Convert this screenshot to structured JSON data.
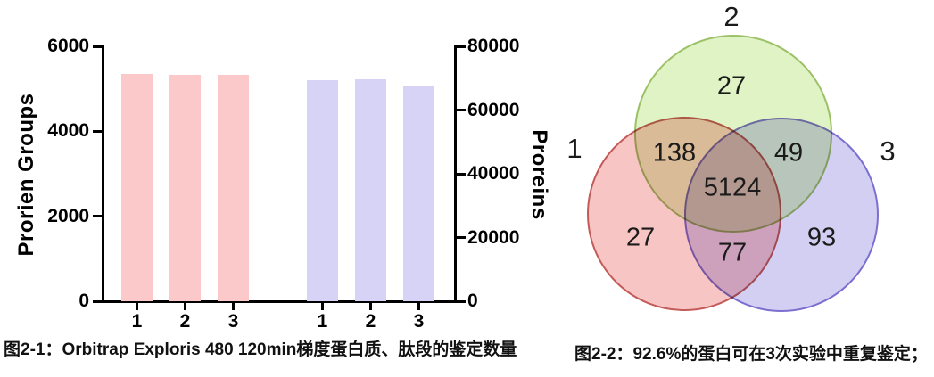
{
  "captions": {
    "fig1": "图2-1：Orbitrap Exploris 480  120min梯度蛋白质、肽段的鉴定数量",
    "fig2": "图2-2：92.6%的蛋白可在3次实验中重复鉴定；"
  },
  "chart_data": [
    {
      "type": "bar",
      "title": "",
      "categories": [
        "1",
        "2",
        "3"
      ],
      "series": [
        {
          "name": "Prorien Groups",
          "axis": "left",
          "values": [
            5360,
            5325,
            5335
          ],
          "color": "#fbc9c9"
        },
        {
          "name": "Proreins",
          "axis": "right",
          "values": [
            69400,
            69650,
            67700
          ],
          "color": "#d7d3f7"
        }
      ],
      "left_axis": {
        "label": "Prorien Groups",
        "min": 0,
        "max": 6000,
        "ticks": [
          "0",
          "2000",
          "4000",
          "6000"
        ]
      },
      "right_axis": {
        "label": "Proreins",
        "min": 0,
        "max": 80000,
        "ticks": [
          "0",
          "20000",
          "40000",
          "60000",
          "80000"
        ]
      },
      "grid": "off",
      "legend": "none"
    },
    {
      "type": "venn",
      "sets": [
        {
          "label": "1",
          "fill": "#f8c5c5",
          "stroke": "#c35b58"
        },
        {
          "label": "2",
          "fill": "#dff3c4",
          "stroke": "#9cc167"
        },
        {
          "label": "3",
          "fill": "#d3cff3",
          "stroke": "#7b6fd0"
        }
      ],
      "regions": [
        {
          "id": "only_2",
          "value": "27"
        },
        {
          "id": "1_and_2",
          "value": "138"
        },
        {
          "id": "2_and_3",
          "value": "49"
        },
        {
          "id": "all",
          "value": "5124"
        },
        {
          "id": "only_1",
          "value": "27"
        },
        {
          "id": "1_and_3",
          "value": "77"
        },
        {
          "id": "only_3",
          "value": "93"
        }
      ]
    }
  ]
}
